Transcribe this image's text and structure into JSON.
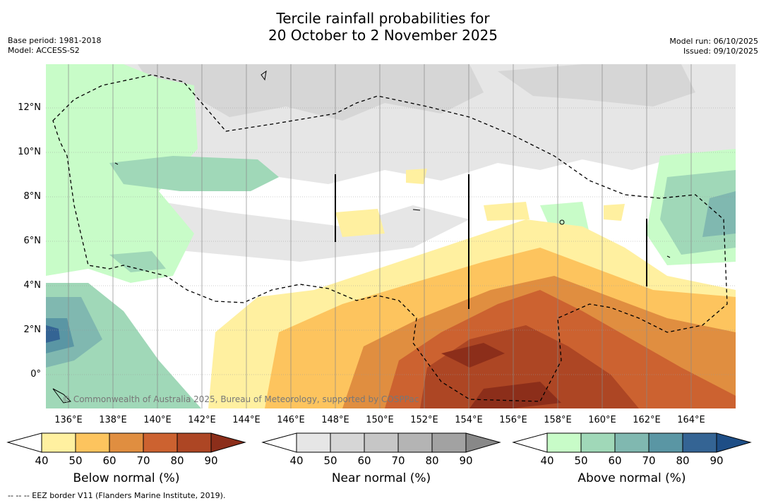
{
  "title": {
    "line1": "Tercile rainfall probabilities for",
    "line2": "20 October to 2 November 2025"
  },
  "meta_left": {
    "base_period": "Base period: 1981-2018",
    "model": "Model: ACCESS-S2"
  },
  "meta_right": {
    "model_run": "Model run: 06/10/2025",
    "issued": "Issued: 09/10/2025"
  },
  "map": {
    "y_ticks": [
      "12°N",
      "10°N",
      "8°N",
      "6°N",
      "4°N",
      "2°N",
      "0°"
    ],
    "x_ticks": [
      "136°E",
      "138°E",
      "140°E",
      "142°E",
      "144°E",
      "146°E",
      "148°E",
      "150°E",
      "152°E",
      "154°E",
      "156°E",
      "158°E",
      "160°E",
      "162°E",
      "164°E"
    ],
    "credit": "© Commonwealth of Australia 2025, Bureau of Meteorology, supported by COSPPac"
  },
  "colorbars": [
    {
      "label": "Below normal (%)",
      "ticks": [
        "40",
        "50",
        "60",
        "70",
        "80",
        "90"
      ],
      "colors": [
        "#fff0a0",
        "#fdc45e",
        "#e08e40",
        "#cc6230",
        "#ad4624",
        "#8c2e1a"
      ]
    },
    {
      "label": "Near normal (%)",
      "ticks": [
        "40",
        "50",
        "60",
        "70",
        "80",
        "90"
      ],
      "colors": [
        "#e6e6e6",
        "#d6d6d6",
        "#c6c6c6",
        "#b4b4b4",
        "#a2a2a2",
        "#888888"
      ]
    },
    {
      "label": "Above normal (%)",
      "ticks": [
        "40",
        "50",
        "60",
        "70",
        "80",
        "90"
      ],
      "colors": [
        "#c8fcc8",
        "#a0d8b8",
        "#80b8b0",
        "#5a96a4",
        "#346494",
        "#1e4e86"
      ]
    }
  ],
  "footer": "--  --  -- EEZ border V11 (Flanders Marine Institute, 2019)."
}
